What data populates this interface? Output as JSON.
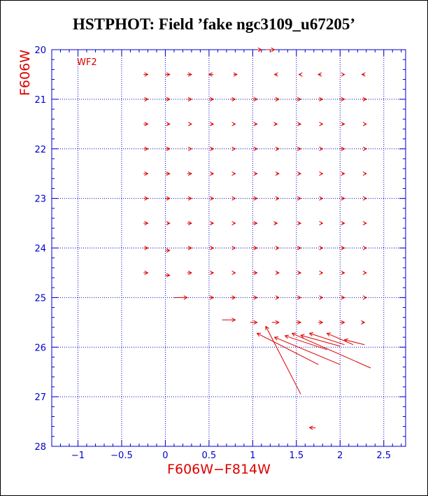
{
  "title": "HSTPHOT: Field ’fake ngc3109_u67205’",
  "colors": {
    "axis": "#0000cc",
    "grid": "#0000cc",
    "data": "#dd0000",
    "label": "#dd0000"
  },
  "chart_data": {
    "type": "vector",
    "title": "HSTPHOT: Field ’fake ngc3109_u67205’",
    "panel_label": "WF2",
    "xlabel": "F606W−F814W",
    "ylabel": "F606W",
    "xlim": [
      -1.3,
      2.75
    ],
    "ylim": [
      28,
      20
    ],
    "y_inverted": true,
    "grid": true,
    "x_ticks": [
      -1,
      -0.5,
      0,
      0.5,
      1,
      1.5,
      2,
      2.5
    ],
    "x_tick_labels": [
      "−1",
      "−0.5",
      "0",
      "0.5",
      "1",
      "1.5",
      "2",
      "2.5"
    ],
    "y_ticks": [
      20,
      21,
      22,
      23,
      24,
      25,
      26,
      27,
      28
    ],
    "y_tick_labels": [
      "20",
      "21",
      "22",
      "23",
      "24",
      "25",
      "26",
      "27",
      "28"
    ],
    "vectors": [
      {
        "x0": -0.25,
        "y0": 20.5,
        "x1": -0.2,
        "y1": 20.5
      },
      {
        "x0": 0.0,
        "y0": 20.5,
        "x1": 0.05,
        "y1": 20.5
      },
      {
        "x0": 0.25,
        "y0": 20.5,
        "x1": 0.3,
        "y1": 20.5
      },
      {
        "x0": 0.55,
        "y0": 20.5,
        "x1": 0.5,
        "y1": 20.5
      },
      {
        "x0": 0.78,
        "y0": 20.5,
        "x1": 0.82,
        "y1": 20.5
      },
      {
        "x0": 1.28,
        "y0": 20.5,
        "x1": 1.25,
        "y1": 20.5
      },
      {
        "x0": 1.55,
        "y0": 20.5,
        "x1": 1.53,
        "y1": 20.5
      },
      {
        "x0": 1.78,
        "y0": 20.5,
        "x1": 1.75,
        "y1": 20.5
      },
      {
        "x0": 2.03,
        "y0": 20.5,
        "x1": 2.05,
        "y1": 20.5
      },
      {
        "x0": 2.28,
        "y0": 20.5,
        "x1": 2.25,
        "y1": 20.5
      },
      {
        "x0": 1.05,
        "y0": 20.0,
        "x1": 1.1,
        "y1": 20.0
      },
      {
        "x0": 1.15,
        "y0": 20.0,
        "x1": 1.25,
        "y1": 20.0
      },
      {
        "x0": -0.25,
        "y0": 21.0,
        "x1": -0.2,
        "y1": 21.0
      },
      {
        "x0": 0.0,
        "y0": 21.0,
        "x1": 0.05,
        "y1": 21.0
      },
      {
        "x0": 0.25,
        "y0": 21.0,
        "x1": 0.3,
        "y1": 21.0
      },
      {
        "x0": 0.5,
        "y0": 21.0,
        "x1": 0.55,
        "y1": 21.0
      },
      {
        "x0": 0.75,
        "y0": 21.0,
        "x1": 0.8,
        "y1": 21.0
      },
      {
        "x0": 1.0,
        "y0": 21.0,
        "x1": 1.05,
        "y1": 21.0
      },
      {
        "x0": 1.25,
        "y0": 21.0,
        "x1": 1.3,
        "y1": 21.0
      },
      {
        "x0": 1.5,
        "y0": 21.0,
        "x1": 1.55,
        "y1": 21.0
      },
      {
        "x0": 1.75,
        "y0": 21.0,
        "x1": 1.8,
        "y1": 21.0
      },
      {
        "x0": 2.0,
        "y0": 21.0,
        "x1": 2.05,
        "y1": 21.0
      },
      {
        "x0": 2.25,
        "y0": 21.0,
        "x1": 2.3,
        "y1": 21.0
      },
      {
        "x0": -0.25,
        "y0": 21.5,
        "x1": -0.2,
        "y1": 21.5
      },
      {
        "x0": 0.02,
        "y0": 21.5,
        "x1": 0.05,
        "y1": 21.5
      },
      {
        "x0": 0.28,
        "y0": 21.5,
        "x1": 0.3,
        "y1": 21.5
      },
      {
        "x0": 0.52,
        "y0": 21.5,
        "x1": 0.55,
        "y1": 21.5
      },
      {
        "x0": 0.78,
        "y0": 21.5,
        "x1": 0.8,
        "y1": 21.5
      },
      {
        "x0": 1.02,
        "y0": 21.5,
        "x1": 1.05,
        "y1": 21.5
      },
      {
        "x0": 1.25,
        "y0": 21.5,
        "x1": 1.28,
        "y1": 21.5
      },
      {
        "x0": 1.52,
        "y0": 21.5,
        "x1": 1.55,
        "y1": 21.5
      },
      {
        "x0": 1.78,
        "y0": 21.5,
        "x1": 1.8,
        "y1": 21.5
      },
      {
        "x0": 2.02,
        "y0": 21.5,
        "x1": 2.05,
        "y1": 21.5
      },
      {
        "x0": 2.28,
        "y0": 21.5,
        "x1": 2.3,
        "y1": 21.5
      },
      {
        "x0": -0.25,
        "y0": 22.0,
        "x1": -0.2,
        "y1": 22.0
      },
      {
        "x0": 0.0,
        "y0": 22.0,
        "x1": 0.05,
        "y1": 22.0
      },
      {
        "x0": 0.28,
        "y0": 22.0,
        "x1": 0.3,
        "y1": 22.0
      },
      {
        "x0": 0.52,
        "y0": 22.0,
        "x1": 0.55,
        "y1": 22.0
      },
      {
        "x0": 0.78,
        "y0": 22.0,
        "x1": 0.8,
        "y1": 22.0
      },
      {
        "x0": 1.02,
        "y0": 22.0,
        "x1": 1.05,
        "y1": 22.0
      },
      {
        "x0": 1.27,
        "y0": 22.0,
        "x1": 1.3,
        "y1": 22.0
      },
      {
        "x0": 1.52,
        "y0": 22.0,
        "x1": 1.55,
        "y1": 22.0
      },
      {
        "x0": 1.78,
        "y0": 22.0,
        "x1": 1.8,
        "y1": 22.0
      },
      {
        "x0": 2.0,
        "y0": 22.0,
        "x1": 2.05,
        "y1": 22.0
      },
      {
        "x0": 2.28,
        "y0": 22.0,
        "x1": 2.3,
        "y1": 22.0
      },
      {
        "x0": -0.25,
        "y0": 22.5,
        "x1": -0.2,
        "y1": 22.5
      },
      {
        "x0": 0.0,
        "y0": 22.5,
        "x1": 0.05,
        "y1": 22.5
      },
      {
        "x0": 0.25,
        "y0": 22.5,
        "x1": 0.3,
        "y1": 22.5
      },
      {
        "x0": 0.52,
        "y0": 22.5,
        "x1": 0.55,
        "y1": 22.5
      },
      {
        "x0": 0.78,
        "y0": 22.5,
        "x1": 0.8,
        "y1": 22.5
      },
      {
        "x0": 1.02,
        "y0": 22.5,
        "x1": 1.05,
        "y1": 22.5
      },
      {
        "x0": 1.27,
        "y0": 22.5,
        "x1": 1.3,
        "y1": 22.5
      },
      {
        "x0": 1.52,
        "y0": 22.5,
        "x1": 1.55,
        "y1": 22.5
      },
      {
        "x0": 1.78,
        "y0": 22.5,
        "x1": 1.8,
        "y1": 22.5
      },
      {
        "x0": 2.02,
        "y0": 22.5,
        "x1": 2.05,
        "y1": 22.5
      },
      {
        "x0": 2.28,
        "y0": 22.5,
        "x1": 2.3,
        "y1": 22.5
      },
      {
        "x0": -0.25,
        "y0": 23.0,
        "x1": -0.2,
        "y1": 23.0
      },
      {
        "x0": 0.0,
        "y0": 23.0,
        "x1": 0.05,
        "y1": 23.0
      },
      {
        "x0": 0.25,
        "y0": 23.0,
        "x1": 0.3,
        "y1": 23.0
      },
      {
        "x0": 0.52,
        "y0": 23.0,
        "x1": 0.55,
        "y1": 23.0
      },
      {
        "x0": 0.78,
        "y0": 23.0,
        "x1": 0.8,
        "y1": 23.0
      },
      {
        "x0": 1.0,
        "y0": 23.0,
        "x1": 1.05,
        "y1": 23.0
      },
      {
        "x0": 1.27,
        "y0": 23.0,
        "x1": 1.3,
        "y1": 23.0
      },
      {
        "x0": 1.52,
        "y0": 23.0,
        "x1": 1.55,
        "y1": 23.0
      },
      {
        "x0": 1.78,
        "y0": 23.0,
        "x1": 1.8,
        "y1": 23.0
      },
      {
        "x0": 2.02,
        "y0": 23.0,
        "x1": 2.05,
        "y1": 23.0
      },
      {
        "x0": 2.28,
        "y0": 23.0,
        "x1": 2.3,
        "y1": 23.0
      },
      {
        "x0": -0.25,
        "y0": 23.5,
        "x1": -0.2,
        "y1": 23.5
      },
      {
        "x0": 0.02,
        "y0": 23.5,
        "x1": 0.05,
        "y1": 23.5
      },
      {
        "x0": 0.25,
        "y0": 23.5,
        "x1": 0.3,
        "y1": 23.5
      },
      {
        "x0": 0.52,
        "y0": 23.5,
        "x1": 0.55,
        "y1": 23.5
      },
      {
        "x0": 0.78,
        "y0": 23.5,
        "x1": 0.8,
        "y1": 23.5
      },
      {
        "x0": 1.0,
        "y0": 23.5,
        "x1": 1.05,
        "y1": 23.5
      },
      {
        "x0": 1.25,
        "y0": 23.5,
        "x1": 1.28,
        "y1": 23.5
      },
      {
        "x0": 1.52,
        "y0": 23.5,
        "x1": 1.55,
        "y1": 23.5
      },
      {
        "x0": 1.78,
        "y0": 23.5,
        "x1": 1.8,
        "y1": 23.5
      },
      {
        "x0": 2.02,
        "y0": 23.5,
        "x1": 2.05,
        "y1": 23.5
      },
      {
        "x0": 2.28,
        "y0": 23.5,
        "x1": 2.3,
        "y1": 23.5
      },
      {
        "x0": -0.25,
        "y0": 24.0,
        "x1": -0.2,
        "y1": 24.0
      },
      {
        "x0": 0.0,
        "y0": 24.05,
        "x1": 0.05,
        "y1": 24.05
      },
      {
        "x0": 0.25,
        "y0": 24.0,
        "x1": 0.3,
        "y1": 24.0
      },
      {
        "x0": 0.52,
        "y0": 24.0,
        "x1": 0.55,
        "y1": 24.0
      },
      {
        "x0": 0.78,
        "y0": 24.0,
        "x1": 0.8,
        "y1": 24.0
      },
      {
        "x0": 1.0,
        "y0": 24.0,
        "x1": 1.05,
        "y1": 24.0
      },
      {
        "x0": 1.27,
        "y0": 24.0,
        "x1": 1.3,
        "y1": 24.0
      },
      {
        "x0": 1.52,
        "y0": 24.0,
        "x1": 1.55,
        "y1": 24.0
      },
      {
        "x0": 1.78,
        "y0": 24.0,
        "x1": 1.8,
        "y1": 24.0
      },
      {
        "x0": 2.02,
        "y0": 24.0,
        "x1": 2.05,
        "y1": 24.0
      },
      {
        "x0": 2.28,
        "y0": 24.0,
        "x1": 2.3,
        "y1": 24.0
      },
      {
        "x0": -0.25,
        "y0": 24.5,
        "x1": -0.2,
        "y1": 24.5
      },
      {
        "x0": 0.0,
        "y0": 24.55,
        "x1": 0.05,
        "y1": 24.55
      },
      {
        "x0": 0.25,
        "y0": 24.5,
        "x1": 0.3,
        "y1": 24.5
      },
      {
        "x0": 0.52,
        "y0": 24.5,
        "x1": 0.55,
        "y1": 24.5
      },
      {
        "x0": 0.78,
        "y0": 24.5,
        "x1": 0.8,
        "y1": 24.5
      },
      {
        "x0": 1.0,
        "y0": 24.5,
        "x1": 1.05,
        "y1": 24.5
      },
      {
        "x0": 1.27,
        "y0": 24.5,
        "x1": 1.3,
        "y1": 24.5
      },
      {
        "x0": 1.52,
        "y0": 24.5,
        "x1": 1.55,
        "y1": 24.5
      },
      {
        "x0": 1.78,
        "y0": 24.5,
        "x1": 1.8,
        "y1": 24.5
      },
      {
        "x0": 2.02,
        "y0": 24.5,
        "x1": 2.05,
        "y1": 24.5
      },
      {
        "x0": 2.28,
        "y0": 24.5,
        "x1": 2.3,
        "y1": 24.5
      },
      {
        "x0": 0.1,
        "y0": 25.0,
        "x1": 0.25,
        "y1": 25.0
      },
      {
        "x0": 0.5,
        "y0": 25.0,
        "x1": 0.55,
        "y1": 25.0
      },
      {
        "x0": 0.75,
        "y0": 25.0,
        "x1": 0.8,
        "y1": 25.0
      },
      {
        "x0": 1.0,
        "y0": 25.0,
        "x1": 1.05,
        "y1": 25.0
      },
      {
        "x0": 1.27,
        "y0": 25.0,
        "x1": 1.3,
        "y1": 25.0
      },
      {
        "x0": 1.52,
        "y0": 25.0,
        "x1": 1.55,
        "y1": 25.0
      },
      {
        "x0": 1.78,
        "y0": 25.0,
        "x1": 1.8,
        "y1": 25.0
      },
      {
        "x0": 2.02,
        "y0": 25.0,
        "x1": 2.05,
        "y1": 25.0
      },
      {
        "x0": 2.28,
        "y0": 25.0,
        "x1": 2.3,
        "y1": 25.0
      },
      {
        "x0": 0.65,
        "y0": 25.45,
        "x1": 0.8,
        "y1": 25.45
      },
      {
        "x0": 0.97,
        "y0": 25.5,
        "x1": 1.05,
        "y1": 25.5
      },
      {
        "x0": 1.22,
        "y0": 25.5,
        "x1": 1.3,
        "y1": 25.5
      },
      {
        "x0": 1.5,
        "y0": 25.5,
        "x1": 1.55,
        "y1": 25.5
      },
      {
        "x0": 1.75,
        "y0": 25.5,
        "x1": 1.8,
        "y1": 25.5
      },
      {
        "x0": 2.0,
        "y0": 25.5,
        "x1": 2.05,
        "y1": 25.5
      },
      {
        "x0": 2.25,
        "y0": 25.5,
        "x1": 2.28,
        "y1": 25.5
      },
      {
        "x0": 1.55,
        "y0": 26.95,
        "x1": 1.15,
        "y1": 25.58
      },
      {
        "x0": 1.75,
        "y0": 26.35,
        "x1": 1.05,
        "y1": 25.72
      },
      {
        "x0": 2.0,
        "y0": 26.35,
        "x1": 1.25,
        "y1": 25.8
      },
      {
        "x0": 2.35,
        "y0": 26.42,
        "x1": 1.45,
        "y1": 25.72
      },
      {
        "x0": 1.85,
        "y0": 26.05,
        "x1": 1.37,
        "y1": 25.77
      },
      {
        "x0": 2.0,
        "y0": 25.98,
        "x1": 1.55,
        "y1": 25.76
      },
      {
        "x0": 2.05,
        "y0": 25.95,
        "x1": 1.65,
        "y1": 25.72
      },
      {
        "x0": 2.15,
        "y0": 25.95,
        "x1": 1.85,
        "y1": 25.72
      },
      {
        "x0": 2.28,
        "y0": 25.95,
        "x1": 2.05,
        "y1": 25.85
      },
      {
        "x0": 1.72,
        "y0": 27.63,
        "x1": 1.65,
        "y1": 27.62
      }
    ]
  }
}
